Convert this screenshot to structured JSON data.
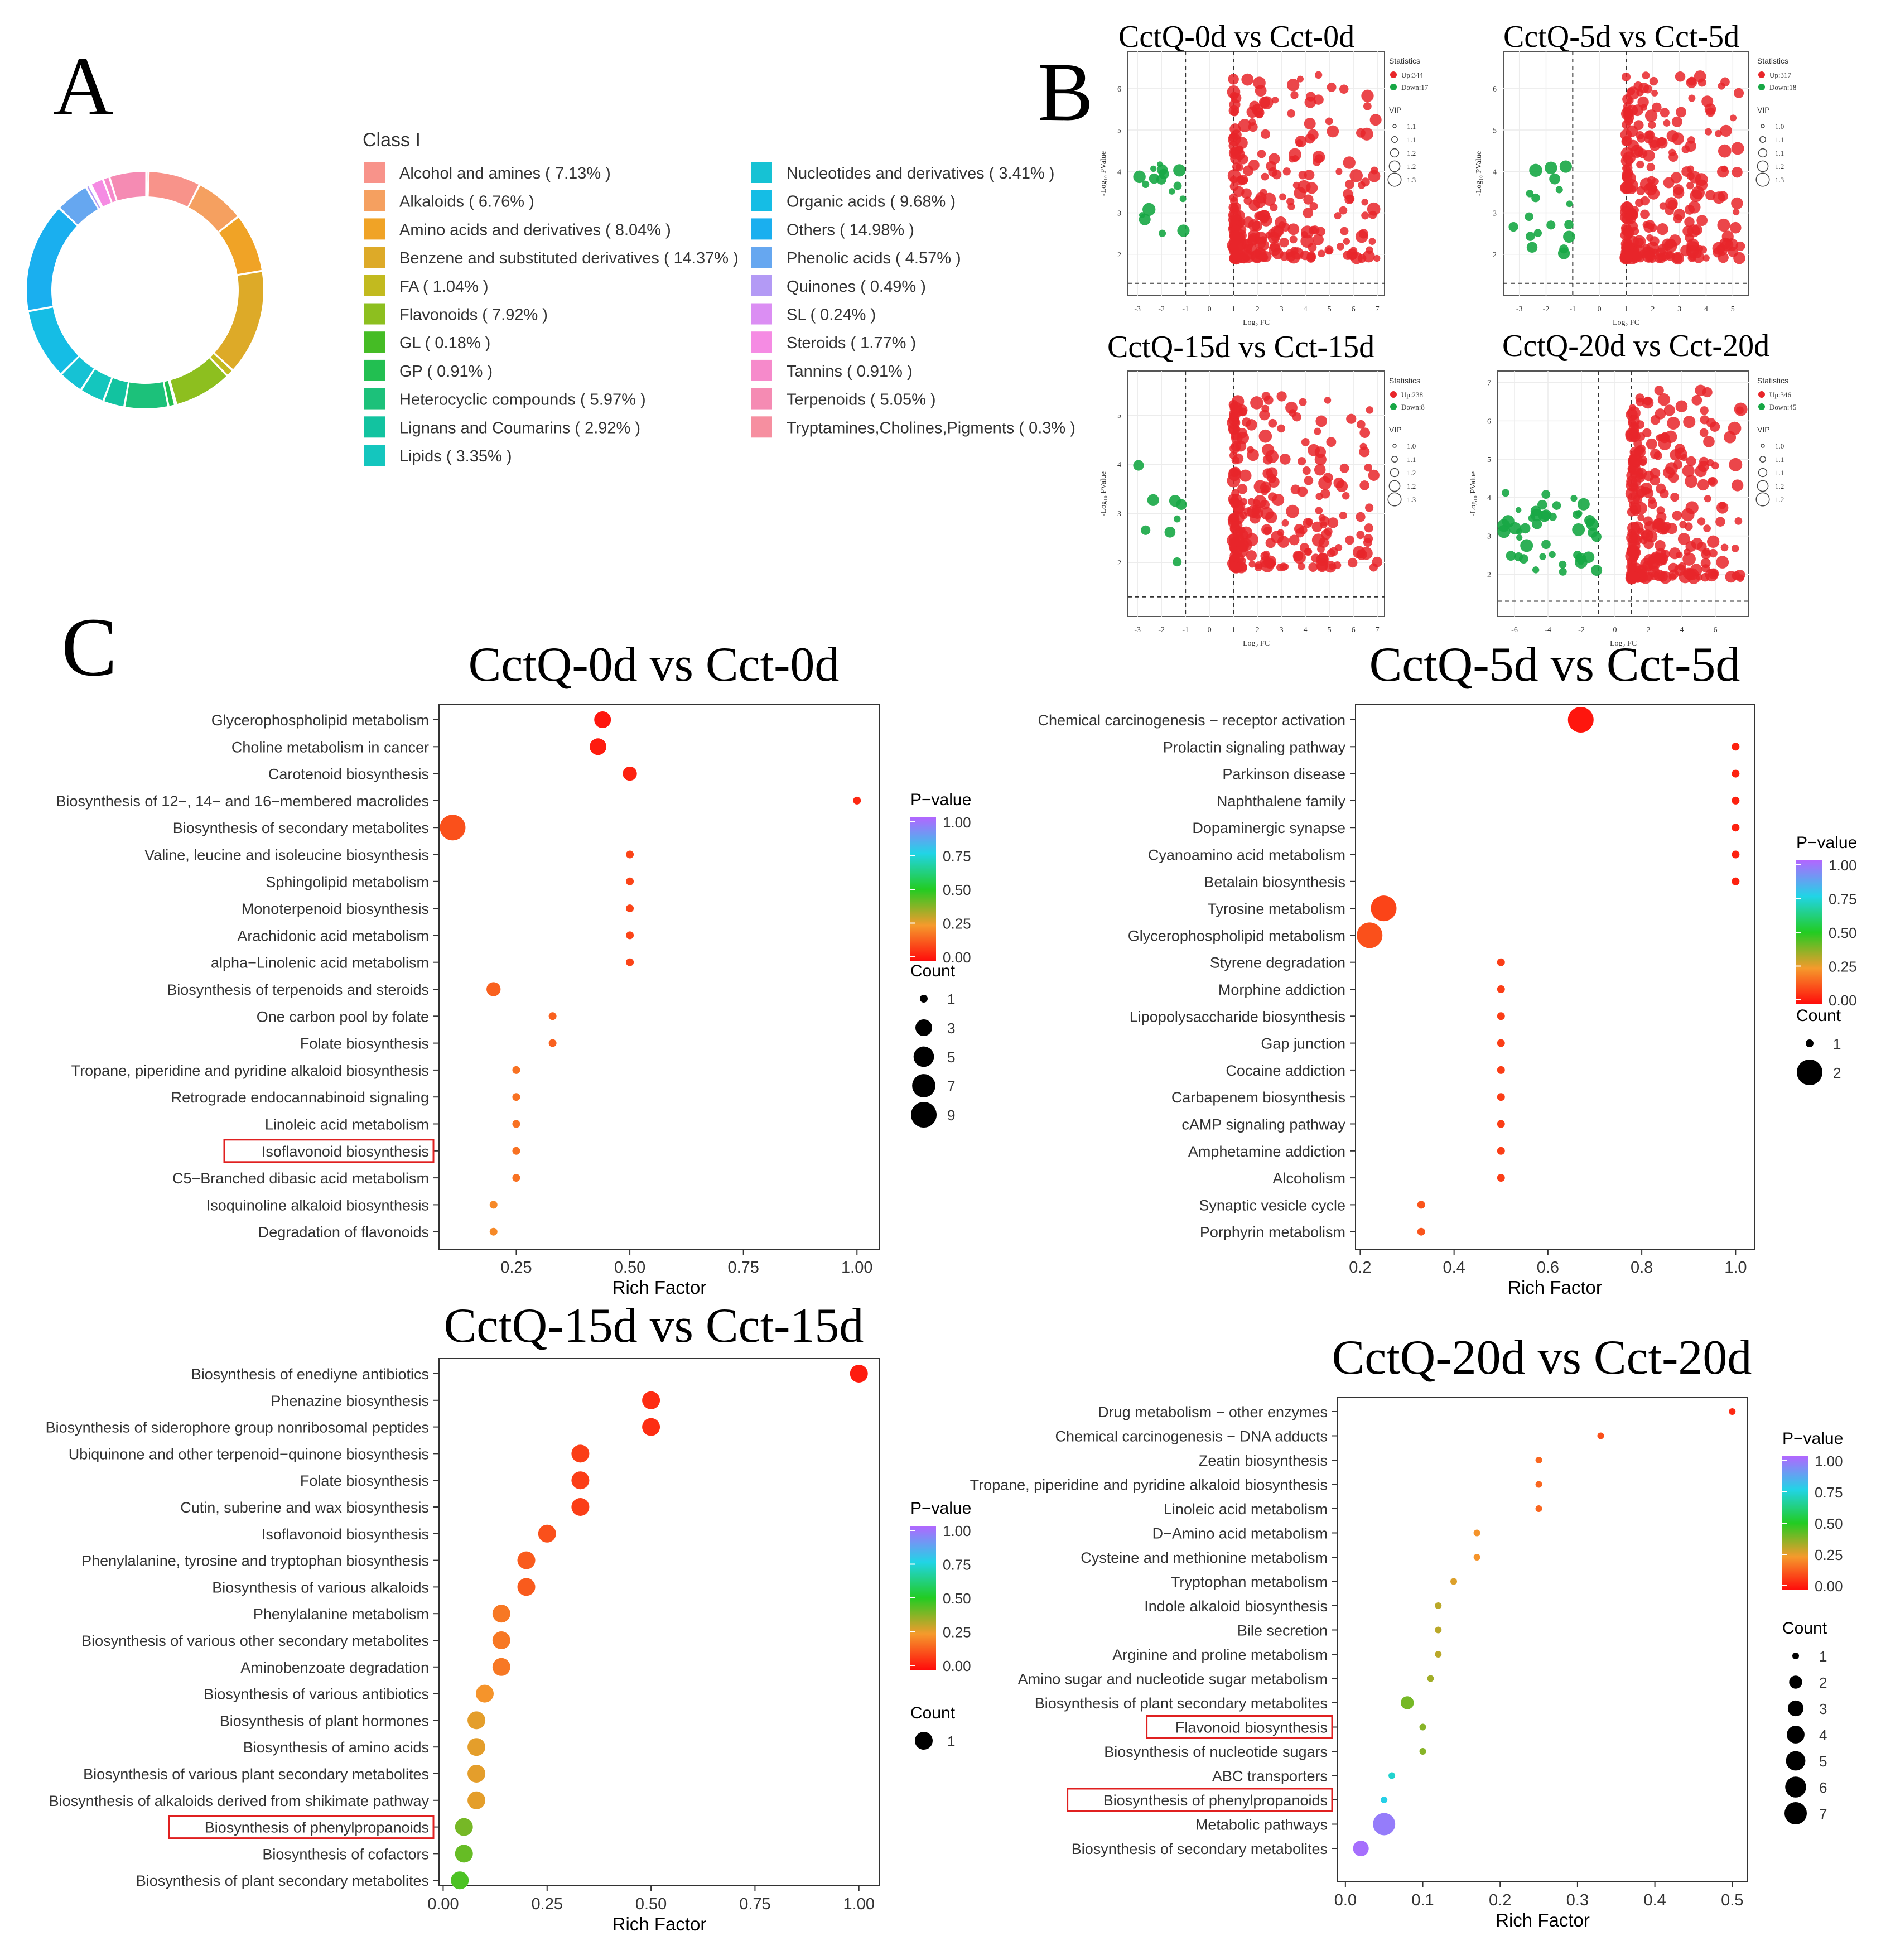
{
  "panels": {
    "a": "A",
    "b": "B",
    "c": "C"
  },
  "donut": {
    "legend_title": "Class I",
    "classes": [
      {
        "label": "Alcohol and amines ( 7.13% )",
        "pct": 7.13,
        "color": "#F8938A"
      },
      {
        "label": "Alkaloids ( 6.76% )",
        "pct": 6.76,
        "color": "#F5A060"
      },
      {
        "label": "Amino acids and derivatives ( 8.04% )",
        "pct": 8.04,
        "color": "#F0A326"
      },
      {
        "label": "Benzene and substituted derivatives ( 14.37% )",
        "pct": 14.37,
        "color": "#DDAA28"
      },
      {
        "label": "FA ( 1.04% )",
        "pct": 1.04,
        "color": "#C2BA1F"
      },
      {
        "label": "Flavonoids ( 7.92% )",
        "pct": 7.92,
        "color": "#8DBF1F"
      },
      {
        "label": "GL ( 0.18% )",
        "pct": 0.18,
        "color": "#45BC25"
      },
      {
        "label": "GP ( 0.91% )",
        "pct": 0.91,
        "color": "#22BF51"
      },
      {
        "label": "Heterocyclic compounds ( 5.97% )",
        "pct": 5.97,
        "color": "#1CC17A"
      },
      {
        "label": "Lignans and Coumarins ( 2.92% )",
        "pct": 2.92,
        "color": "#12C3A0"
      },
      {
        "label": "Lipids ( 3.35% )",
        "pct": 3.35,
        "color": "#14C6BE"
      },
      {
        "label": "Nucleotides and derivatives ( 3.41% )",
        "pct": 3.41,
        "color": "#16C2D4"
      },
      {
        "label": "Organic acids ( 9.68% )",
        "pct": 9.68,
        "color": "#15BDE5"
      },
      {
        "label": "Others ( 14.98% )",
        "pct": 14.98,
        "color": "#1AAFEF"
      },
      {
        "label": "Phenolic acids ( 4.57% )",
        "pct": 4.57,
        "color": "#66A7F0"
      },
      {
        "label": "Quinones ( 0.49% )",
        "pct": 0.49,
        "color": "#B39AF5"
      },
      {
        "label": "SL ( 0.24% )",
        "pct": 0.24,
        "color": "#DB8EF3"
      },
      {
        "label": "Steroids ( 1.77% )",
        "pct": 1.77,
        "color": "#F58BE3"
      },
      {
        "label": "Tannins ( 0.91% )",
        "pct": 0.91,
        "color": "#F68ACB"
      },
      {
        "label": "Terpenoids ( 5.05% )",
        "pct": 5.05,
        "color": "#F58BB3"
      },
      {
        "label": "Tryptamines,Cholines,Pigments ( 0.3% )",
        "pct": 0.3,
        "color": "#F68FA0"
      }
    ]
  },
  "volcano": [
    {
      "title": "CctQ-0d vs Cct-0d",
      "x_label": "Log₂ FC",
      "y_label": "-Log₁₀ PValue",
      "x_ticks": [
        "-3",
        "-2",
        "-1",
        "0",
        "1",
        "2",
        "3",
        "4",
        "5",
        "6",
        "7"
      ],
      "y_ticks": [
        "2",
        "3",
        "4",
        "5",
        "6"
      ],
      "legend_stats_title": "Statistics",
      "up": "Up:344",
      "down": "Down:17",
      "vip_title": "VIP",
      "vip_values": [
        "1.1",
        "1.1",
        "1.2",
        "1.2",
        "1.3"
      ]
    },
    {
      "title": "CctQ-5d vs Cct-5d",
      "x_label": "Log₂ FC",
      "y_label": "-Log₁₀ PValue",
      "x_ticks": [
        "-3",
        "-2",
        "-1",
        "0",
        "1",
        "2",
        "3",
        "4",
        "5"
      ],
      "y_ticks": [
        "2",
        "3",
        "4",
        "5",
        "6"
      ],
      "legend_stats_title": "Statistics",
      "up": "Up:317",
      "down": "Down:18",
      "vip_title": "VIP",
      "vip_values": [
        "1.0",
        "1.1",
        "1.1",
        "1.2",
        "1.3"
      ]
    },
    {
      "title": "CctQ-15d vs Cct-15d",
      "x_label": "Log₂ FC",
      "y_label": "-Log₁₀ PValue",
      "x_ticks": [
        "-3",
        "-2",
        "-1",
        "0",
        "1",
        "2",
        "3",
        "4",
        "5",
        "6",
        "7"
      ],
      "y_ticks": [
        "2",
        "3",
        "4",
        "5"
      ],
      "legend_stats_title": "Statistics",
      "up": "Up:238",
      "down": "Down:8",
      "vip_title": "VIP",
      "vip_values": [
        "1.0",
        "1.1",
        "1.2",
        "1.2",
        "1.3"
      ]
    },
    {
      "title": "CctQ-20d vs Cct-20d",
      "x_label": "Log₂ FC",
      "y_label": "-Log₁₀ PValue",
      "x_ticks": [
        "-6",
        "-4",
        "-2",
        "0",
        "2",
        "4",
        "6"
      ],
      "y_ticks": [
        "2",
        "3",
        "4",
        "5",
        "6",
        "7"
      ],
      "legend_stats_title": "Statistics",
      "up": "Up:346",
      "down": "Down:45",
      "vip_title": "VIP",
      "vip_values": [
        "1.0",
        "1.1",
        "1.1",
        "1.2",
        "1.2"
      ]
    }
  ],
  "chart_data": [
    {
      "type": "scatter",
      "title": "CctQ-0d vs Cct-0d",
      "xlabel": "Rich Factor",
      "x_ticks": [
        "0.25",
        "0.50",
        "0.75",
        "1.00"
      ],
      "xlim": [
        0.08,
        1.05
      ],
      "pvalue_legend": {
        "title": "P−value",
        "ticks": [
          "1.00",
          "0.75",
          "0.50",
          "0.25",
          "0.00"
        ]
      },
      "count_legend": {
        "title": "Count",
        "values": [
          1,
          3,
          5,
          7,
          9
        ]
      },
      "count_max": 9,
      "highlight": [
        "Isoflavonoid biosynthesis"
      ],
      "points": [
        {
          "pathway": "Glycerophospholipid metabolism",
          "rich": 0.44,
          "count": 3,
          "p": 0.02
        },
        {
          "pathway": "Choline metabolism in cancer",
          "rich": 0.43,
          "count": 3,
          "p": 0.03
        },
        {
          "pathway": "Carotenoid biosynthesis",
          "rich": 0.5,
          "count": 2,
          "p": 0.04
        },
        {
          "pathway": "Biosynthesis of 12−, 14− and 16−membered macrolides",
          "rich": 1.0,
          "count": 1,
          "p": 0.05
        },
        {
          "pathway": "Biosynthesis of secondary metabolites",
          "rich": 0.11,
          "count": 9,
          "p": 0.12
        },
        {
          "pathway": "Valine, leucine and isoleucine biosynthesis",
          "rich": 0.5,
          "count": 1,
          "p": 0.1
        },
        {
          "pathway": "Sphingolipid metabolism",
          "rich": 0.5,
          "count": 1,
          "p": 0.1
        },
        {
          "pathway": "Monoterpenoid biosynthesis",
          "rich": 0.5,
          "count": 1,
          "p": 0.1
        },
        {
          "pathway": "Arachidonic acid metabolism",
          "rich": 0.5,
          "count": 1,
          "p": 0.1
        },
        {
          "pathway": "alpha−Linolenic acid metabolism",
          "rich": 0.5,
          "count": 1,
          "p": 0.1
        },
        {
          "pathway": "Biosynthesis of terpenoids and steroids",
          "rich": 0.2,
          "count": 2,
          "p": 0.15
        },
        {
          "pathway": "One carbon pool by folate",
          "rich": 0.33,
          "count": 1,
          "p": 0.15
        },
        {
          "pathway": "Folate biosynthesis",
          "rich": 0.33,
          "count": 1,
          "p": 0.15
        },
        {
          "pathway": "Tropane, piperidine and pyridine alkaloid biosynthesis",
          "rich": 0.25,
          "count": 1,
          "p": 0.18
        },
        {
          "pathway": "Retrograde endocannabinoid signaling",
          "rich": 0.25,
          "count": 1,
          "p": 0.18
        },
        {
          "pathway": "Linoleic acid metabolism",
          "rich": 0.25,
          "count": 1,
          "p": 0.18
        },
        {
          "pathway": "Isoflavonoid biosynthesis",
          "rich": 0.25,
          "count": 1,
          "p": 0.18
        },
        {
          "pathway": "C5−Branched dibasic acid metabolism",
          "rich": 0.25,
          "count": 1,
          "p": 0.18
        },
        {
          "pathway": "Isoquinoline alkaloid biosynthesis",
          "rich": 0.2,
          "count": 1,
          "p": 0.22
        },
        {
          "pathway": "Degradation of flavonoids",
          "rich": 0.2,
          "count": 1,
          "p": 0.22
        }
      ]
    },
    {
      "type": "scatter",
      "title": "CctQ-5d vs Cct-5d",
      "xlabel": "Rich Factor",
      "x_ticks": [
        "0.2",
        "0.4",
        "0.6",
        "0.8",
        "1.0"
      ],
      "xlim": [
        0.19,
        1.04
      ],
      "pvalue_legend": {
        "title": "P−value",
        "ticks": [
          "1.00",
          "0.75",
          "0.50",
          "0.25",
          "0.00"
        ]
      },
      "count_legend": {
        "title": "Count",
        "values": [
          1,
          2
        ]
      },
      "count_max": 2,
      "highlight": [],
      "points": [
        {
          "pathway": "Chemical carcinogenesis − receptor activation",
          "rich": 0.67,
          "count": 2,
          "p": 0.02
        },
        {
          "pathway": "Prolactin signaling pathway",
          "rich": 1.0,
          "count": 1,
          "p": 0.04
        },
        {
          "pathway": "Parkinson disease",
          "rich": 1.0,
          "count": 1,
          "p": 0.04
        },
        {
          "pathway": "Naphthalene family",
          "rich": 1.0,
          "count": 1,
          "p": 0.04
        },
        {
          "pathway": "Dopaminergic synapse",
          "rich": 1.0,
          "count": 1,
          "p": 0.04
        },
        {
          "pathway": "Cyanoamino acid metabolism",
          "rich": 1.0,
          "count": 1,
          "p": 0.04
        },
        {
          "pathway": "Betalain biosynthesis",
          "rich": 1.0,
          "count": 1,
          "p": 0.04
        },
        {
          "pathway": "Tyrosine metabolism",
          "rich": 0.25,
          "count": 2,
          "p": 0.1
        },
        {
          "pathway": "Glycerophospholipid metabolism",
          "rich": 0.22,
          "count": 2,
          "p": 0.12
        },
        {
          "pathway": "Styrene degradation",
          "rich": 0.5,
          "count": 1,
          "p": 0.09
        },
        {
          "pathway": "Morphine addiction",
          "rich": 0.5,
          "count": 1,
          "p": 0.09
        },
        {
          "pathway": "Lipopolysaccharide biosynthesis",
          "rich": 0.5,
          "count": 1,
          "p": 0.09
        },
        {
          "pathway": "Gap junction",
          "rich": 0.5,
          "count": 1,
          "p": 0.09
        },
        {
          "pathway": "Cocaine addiction",
          "rich": 0.5,
          "count": 1,
          "p": 0.09
        },
        {
          "pathway": "Carbapenem biosynthesis",
          "rich": 0.5,
          "count": 1,
          "p": 0.09
        },
        {
          "pathway": "cAMP signaling pathway",
          "rich": 0.5,
          "count": 1,
          "p": 0.09
        },
        {
          "pathway": "Amphetamine addiction",
          "rich": 0.5,
          "count": 1,
          "p": 0.09
        },
        {
          "pathway": "Alcoholism",
          "rich": 0.5,
          "count": 1,
          "p": 0.09
        },
        {
          "pathway": "Synaptic vesicle cycle",
          "rich": 0.33,
          "count": 1,
          "p": 0.13
        },
        {
          "pathway": "Porphyrin metabolism",
          "rich": 0.33,
          "count": 1,
          "p": 0.13
        }
      ]
    },
    {
      "type": "scatter",
      "title": "CctQ-15d vs Cct-15d",
      "xlabel": "Rich Factor",
      "x_ticks": [
        "0.00",
        "0.25",
        "0.50",
        "0.75",
        "1.00"
      ],
      "xlim": [
        -0.01,
        1.05
      ],
      "pvalue_legend": {
        "title": "P−value",
        "ticks": [
          "1.00",
          "0.75",
          "0.50",
          "0.25",
          "0.00"
        ]
      },
      "count_legend": {
        "title": "Count",
        "values": [
          1
        ]
      },
      "count_max": 1,
      "highlight": [
        "Biosynthesis of phenylpropanoids"
      ],
      "points": [
        {
          "pathway": "Biosynthesis of enediyne antibiotics",
          "rich": 1.0,
          "count": 1,
          "p": 0.03
        },
        {
          "pathway": "Phenazine biosynthesis",
          "rich": 0.5,
          "count": 1,
          "p": 0.06
        },
        {
          "pathway": "Biosynthesis of siderophore group nonribosomal peptides",
          "rich": 0.5,
          "count": 1,
          "p": 0.06
        },
        {
          "pathway": "Ubiquinone and other terpenoid−quinone biosynthesis",
          "rich": 0.33,
          "count": 1,
          "p": 0.09
        },
        {
          "pathway": "Folate biosynthesis",
          "rich": 0.33,
          "count": 1,
          "p": 0.09
        },
        {
          "pathway": "Cutin, suberine and wax biosynthesis",
          "rich": 0.33,
          "count": 1,
          "p": 0.09
        },
        {
          "pathway": "Isoflavonoid biosynthesis",
          "rich": 0.25,
          "count": 1,
          "p": 0.12
        },
        {
          "pathway": "Phenylalanine, tyrosine and tryptophan biosynthesis",
          "rich": 0.2,
          "count": 1,
          "p": 0.14
        },
        {
          "pathway": "Biosynthesis of various alkaloids",
          "rich": 0.2,
          "count": 1,
          "p": 0.14
        },
        {
          "pathway": "Phenylalanine metabolism",
          "rich": 0.14,
          "count": 1,
          "p": 0.19
        },
        {
          "pathway": "Biosynthesis of various other secondary metabolites",
          "rich": 0.14,
          "count": 1,
          "p": 0.19
        },
        {
          "pathway": "Aminobenzoate degradation",
          "rich": 0.14,
          "count": 1,
          "p": 0.19
        },
        {
          "pathway": "Biosynthesis of various antibiotics",
          "rich": 0.1,
          "count": 1,
          "p": 0.24
        },
        {
          "pathway": "Biosynthesis of plant hormones",
          "rich": 0.08,
          "count": 1,
          "p": 0.27
        },
        {
          "pathway": "Biosynthesis of amino acids",
          "rich": 0.08,
          "count": 1,
          "p": 0.27
        },
        {
          "pathway": "Biosynthesis of various plant secondary metabolites",
          "rich": 0.08,
          "count": 1,
          "p": 0.27
        },
        {
          "pathway": "Biosynthesis of alkaloids derived from shikimate pathway",
          "rich": 0.08,
          "count": 1,
          "p": 0.27
        },
        {
          "pathway": "Biosynthesis of phenylpropanoids",
          "rich": 0.05,
          "count": 1,
          "p": 0.4
        },
        {
          "pathway": "Biosynthesis of cofactors",
          "rich": 0.05,
          "count": 1,
          "p": 0.42
        },
        {
          "pathway": "Biosynthesis of plant secondary metabolites",
          "rich": 0.04,
          "count": 1,
          "p": 0.45
        }
      ]
    },
    {
      "type": "scatter",
      "title": "CctQ-20d vs Cct-20d",
      "xlabel": "Rich Factor",
      "x_ticks": [
        "0.0",
        "0.1",
        "0.2",
        "0.3",
        "0.4",
        "0.5"
      ],
      "xlim": [
        -0.01,
        0.52
      ],
      "pvalue_legend": {
        "title": "P−value",
        "ticks": [
          "1.00",
          "0.75",
          "0.50",
          "0.25",
          "0.00"
        ]
      },
      "count_legend": {
        "title": "Count",
        "values": [
          1,
          2,
          3,
          4,
          5,
          6,
          7
        ]
      },
      "count_max": 7,
      "highlight": [
        "Flavonoid biosynthesis",
        "Biosynthesis of phenylpropanoids"
      ],
      "points": [
        {
          "pathway": "Drug metabolism − other enzymes",
          "rich": 0.5,
          "count": 1,
          "p": 0.05
        },
        {
          "pathway": "Chemical carcinogenesis − DNA adducts",
          "rich": 0.33,
          "count": 1,
          "p": 0.12
        },
        {
          "pathway": "Zeatin biosynthesis",
          "rich": 0.25,
          "count": 1,
          "p": 0.16
        },
        {
          "pathway": "Tropane, piperidine and pyridine alkaloid biosynthesis",
          "rich": 0.25,
          "count": 1,
          "p": 0.16
        },
        {
          "pathway": "Linoleic acid metabolism",
          "rich": 0.25,
          "count": 1,
          "p": 0.16
        },
        {
          "pathway": "D−Amino acid metabolism",
          "rich": 0.17,
          "count": 1,
          "p": 0.24
        },
        {
          "pathway": "Cysteine and methionine metabolism",
          "rich": 0.17,
          "count": 1,
          "p": 0.24
        },
        {
          "pathway": "Tryptophan metabolism",
          "rich": 0.14,
          "count": 1,
          "p": 0.28
        },
        {
          "pathway": "Indole alkaloid biosynthesis",
          "rich": 0.12,
          "count": 1,
          "p": 0.32
        },
        {
          "pathway": "Bile secretion",
          "rich": 0.12,
          "count": 1,
          "p": 0.32
        },
        {
          "pathway": "Arginine and proline metabolism",
          "rich": 0.12,
          "count": 1,
          "p": 0.32
        },
        {
          "pathway": "Amino sugar and nucleotide sugar metabolism",
          "rich": 0.11,
          "count": 1,
          "p": 0.35
        },
        {
          "pathway": "Biosynthesis of plant secondary metabolites",
          "rich": 0.08,
          "count": 2,
          "p": 0.4
        },
        {
          "pathway": "Flavonoid biosynthesis",
          "rich": 0.1,
          "count": 1,
          "p": 0.38
        },
        {
          "pathway": "Biosynthesis of nucleotide sugars",
          "rich": 0.1,
          "count": 1,
          "p": 0.38
        },
        {
          "pathway": "ABC transporters",
          "rich": 0.06,
          "count": 1,
          "p": 0.72
        },
        {
          "pathway": "Biosynthesis of phenylpropanoids",
          "rich": 0.05,
          "count": 1,
          "p": 0.76
        },
        {
          "pathway": "Metabolic pathways",
          "rich": 0.05,
          "count": 7,
          "p": 0.95
        },
        {
          "pathway": "Biosynthesis of secondary metabolites",
          "rich": 0.02,
          "count": 3,
          "p": 0.98
        }
      ]
    }
  ]
}
